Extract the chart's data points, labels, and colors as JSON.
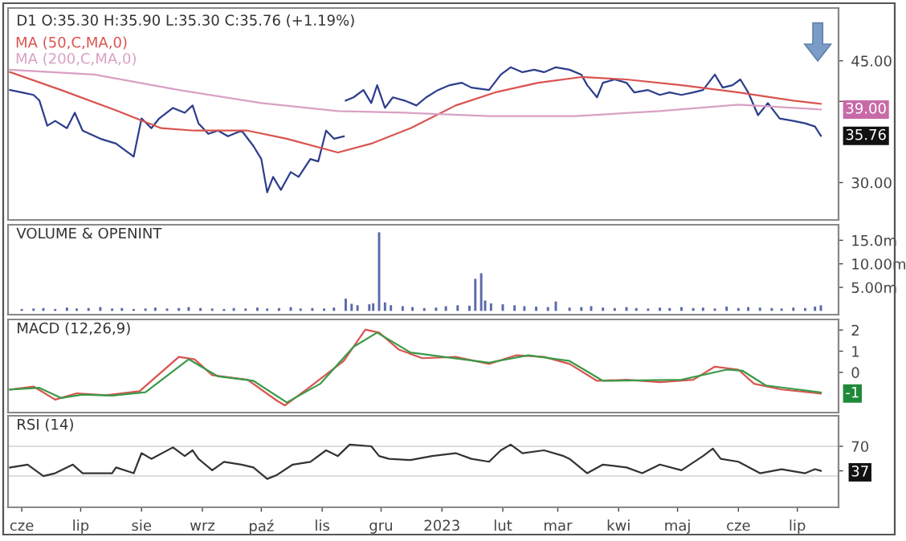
{
  "chart_data": [
    {
      "type": "line",
      "title": "D1 O:35.30 H:35.90 L:35.30 C:35.76 (+1.19%)",
      "legend": "top left",
      "tick_labels": "y",
      "xlim": [
        "2022-05-25",
        "2023-07-22"
      ],
      "ylim": [
        25.4,
        51.5
      ],
      "yticks": [
        {
          "value": 30,
          "label": "30.00"
        },
        {
          "value": 40,
          "label": null
        },
        {
          "value": 45,
          "label": "45.00"
        }
      ],
      "series": [
        {
          "color": "#2c3e8c",
          "x": [
            "2022-05-26",
            "2022-06-01",
            "2022-06-07",
            "2022-06-10",
            "2022-06-14",
            "2022-06-18",
            "2022-06-24",
            "2022-06-28",
            "2022-07-02",
            "2022-07-11",
            "2022-07-19",
            "2022-07-28",
            "2022-08-01",
            "2022-08-06",
            "2022-08-10",
            "2022-08-17",
            "2022-08-23",
            "2022-08-27",
            "2022-08-30",
            "2022-09-04",
            "2022-09-09",
            "2022-09-14",
            "2022-09-21",
            "2022-09-27",
            "2022-10-01",
            "2022-10-04",
            "2022-10-07",
            "2022-10-11",
            "2022-10-16",
            "2022-10-20",
            "2022-10-26",
            "2022-10-30",
            "2022-11-03",
            "2022-11-07",
            "2022-11-12",
            "2022-11-12T12:00",
            "2022-11-13",
            "2022-11-17",
            "2022-11-22",
            "2022-11-26",
            "2022-11-29",
            "2022-12-03",
            "2022-12-07",
            "2022-12-13",
            "2022-12-19",
            "2022-12-24",
            "2022-12-30",
            "2023-01-05",
            "2023-01-11",
            "2023-01-16",
            "2023-01-25",
            "2023-01-31",
            "2023-02-05",
            "2023-02-11",
            "2023-02-17",
            "2023-02-22",
            "2023-02-28",
            "2023-03-07",
            "2023-03-13",
            "2023-03-16",
            "2023-03-21",
            "2023-03-24",
            "2023-03-30",
            "2023-04-05",
            "2023-04-09",
            "2023-04-16",
            "2023-04-22",
            "2023-04-27",
            "2023-05-03",
            "2023-05-09",
            "2023-05-14",
            "2023-05-20",
            "2023-05-24",
            "2023-05-29",
            "2023-06-02",
            "2023-06-06",
            "2023-06-11",
            "2023-06-16",
            "2023-06-22",
            "2023-06-29",
            "2023-07-05",
            "2023-07-10",
            "2023-07-13"
          ],
          "values": [
            41.4,
            41.1,
            40.8,
            40.1,
            37.0,
            37.6,
            36.7,
            38.6,
            36.4,
            35.4,
            34.8,
            33.2,
            37.9,
            36.7,
            37.9,
            39.2,
            38.6,
            39.5,
            37.3,
            36.0,
            36.4,
            35.7,
            36.4,
            34.5,
            32.9,
            28.8,
            30.7,
            29.1,
            31.3,
            30.7,
            32.9,
            32.6,
            36.4,
            35.4,
            35.7,
            null,
            40.1,
            40.5,
            41.4,
            39.8,
            42.0,
            39.2,
            40.5,
            40.1,
            39.5,
            40.5,
            41.4,
            42.0,
            42.3,
            41.7,
            41.4,
            43.3,
            44.2,
            43.6,
            43.9,
            43.6,
            44.2,
            43.9,
            43.3,
            42.0,
            40.5,
            42.3,
            42.7,
            42.3,
            41.1,
            41.4,
            40.8,
            41.1,
            40.8,
            41.1,
            41.4,
            43.3,
            41.7,
            42.0,
            42.7,
            41.1,
            38.3,
            39.8,
            37.9,
            37.6,
            37.3,
            36.9,
            35.76
          ]
        },
        {
          "name": "MA (50,C,MA,0)",
          "color": "#d9534f",
          "x": [
            "2022-05-26",
            "2022-06-21",
            "2022-07-19",
            "2022-08-11",
            "2022-08-28",
            "2022-09-24",
            "2022-10-14",
            "2022-11-09",
            "2022-11-26",
            "2022-12-16",
            "2023-01-08",
            "2023-01-28",
            "2023-02-19",
            "2023-03-13",
            "2023-04-05",
            "2023-05-03",
            "2023-06-01",
            "2023-06-29",
            "2023-07-13"
          ],
          "values": [
            43.6,
            41.4,
            38.9,
            36.7,
            36.4,
            36.4,
            35.4,
            33.7,
            34.8,
            36.7,
            39.5,
            41.1,
            42.3,
            43.0,
            42.7,
            42.0,
            41.1,
            40.1,
            39.7
          ]
        },
        {
          "name": "MA (200,C,MA,0)",
          "color": "#d9a0c4",
          "x": [
            "2022-05-26",
            "2022-07-08",
            "2022-08-20",
            "2022-10-01",
            "2022-11-09",
            "2022-12-13",
            "2023-01-25",
            "2023-03-10",
            "2023-04-22",
            "2023-06-01",
            "2023-07-13"
          ],
          "values": [
            43.9,
            43.3,
            41.4,
            39.8,
            38.8,
            38.6,
            38.2,
            38.2,
            38.8,
            39.6,
            39.0
          ]
        }
      ],
      "annotations": [
        {
          "text": "39.00",
          "x": "2023-07-13",
          "y": 39.0
        },
        {
          "text": "35.76",
          "x": "2023-07-13",
          "y": 35.76
        }
      ]
    },
    {
      "type": "bar",
      "title": "VOLUME & OPENINT",
      "tick_labels": "y",
      "color": "#5a6aa8",
      "xlim": [
        "2022-05-25",
        "2023-07-22"
      ],
      "ylim": [
        -0.8,
        18.3
      ],
      "yticks": [
        {
          "value": 5,
          "label": "5.00m"
        },
        {
          "value": 10,
          "label": "10.00m"
        },
        {
          "value": 15,
          "label": "15.0m"
        }
      ],
      "x": [
        "2022-06-01",
        "2022-06-07",
        "2022-06-12",
        "2022-06-18",
        "2022-06-24",
        "2022-06-29",
        "2022-07-05",
        "2022-07-11",
        "2022-07-17",
        "2022-07-22",
        "2022-07-28",
        "2022-08-03",
        "2022-08-08",
        "2022-08-14",
        "2022-08-20",
        "2022-08-25",
        "2022-08-31",
        "2022-09-06",
        "2022-09-12",
        "2022-09-17",
        "2022-09-23",
        "2022-09-29",
        "2022-10-04",
        "2022-10-10",
        "2022-10-16",
        "2022-10-21",
        "2022-10-27",
        "2022-11-02",
        "2022-11-07",
        "2022-11-13",
        "2022-11-16",
        "2022-11-19",
        "2022-11-25",
        "2022-11-27",
        "2022-11-30",
        "2022-12-03",
        "2022-12-06",
        "2022-12-12",
        "2022-12-17",
        "2022-12-23",
        "2022-12-29",
        "2023-01-03",
        "2023-01-09",
        "2023-01-15",
        "2023-01-18",
        "2023-01-21",
        "2023-01-23",
        "2023-01-26",
        "2023-02-01",
        "2023-02-07",
        "2023-02-12",
        "2023-02-18",
        "2023-02-24",
        "2023-02-28",
        "2023-03-07",
        "2023-03-13",
        "2023-03-18",
        "2023-03-24",
        "2023-03-30",
        "2023-04-05",
        "2023-04-10",
        "2023-04-16",
        "2023-04-22",
        "2023-04-27",
        "2023-05-03",
        "2023-05-09",
        "2023-05-14",
        "2023-05-20",
        "2023-05-26",
        "2023-06-01",
        "2023-06-06",
        "2023-06-12",
        "2023-06-18",
        "2023-06-23",
        "2023-06-29",
        "2023-07-05",
        "2023-07-10",
        "2023-07-13"
      ],
      "values": [
        0.4,
        0.5,
        0.6,
        0.4,
        0.7,
        0.5,
        0.6,
        0.8,
        0.5,
        0.6,
        0.4,
        0.5,
        0.7,
        0.5,
        0.6,
        0.8,
        0.6,
        0.5,
        0.4,
        0.6,
        0.5,
        0.7,
        0.5,
        0.6,
        0.8,
        0.5,
        0.6,
        0.5,
        0.7,
        2.6,
        1.5,
        1.2,
        1.4,
        1.6,
        16.7,
        1.8,
        1.2,
        1.0,
        0.8,
        0.6,
        0.7,
        1.0,
        1.2,
        1.1,
        6.8,
        8.0,
        2.2,
        1.6,
        1.4,
        1.2,
        1.0,
        0.9,
        0.8,
        2.0,
        0.7,
        0.8,
        1.0,
        0.7,
        0.6,
        0.8,
        0.6,
        0.5,
        0.7,
        0.6,
        0.8,
        0.6,
        0.7,
        0.5,
        0.9,
        0.6,
        0.8,
        0.7,
        0.6,
        0.5,
        0.7,
        0.6,
        0.9,
        1.2
      ]
    },
    {
      "type": "line",
      "title": "MACD (12,26,9)",
      "tick_labels": "y",
      "xlim": [
        "2022-05-25",
        "2023-07-22"
      ],
      "ylim": [
        -1.9,
        2.5
      ],
      "yticks": [
        0,
        1,
        2
      ],
      "series": [
        {
          "color": "#d9534f",
          "x": [
            "2022-05-26",
            "2022-06-07",
            "2022-06-18",
            "2022-06-29",
            "2022-07-14",
            "2022-07-31",
            "2022-08-20",
            "2022-08-28",
            "2022-09-06",
            "2022-09-24",
            "2022-10-09",
            "2022-10-13",
            "2022-10-26",
            "2022-11-12",
            "2022-11-23",
            "2022-11-30",
            "2022-12-10",
            "2022-12-22",
            "2023-01-08",
            "2023-01-25",
            "2023-02-08",
            "2023-02-22",
            "2023-03-07",
            "2023-03-21",
            "2023-04-05",
            "2023-04-22",
            "2023-05-09",
            "2023-05-20",
            "2023-06-01",
            "2023-06-09",
            "2023-06-23",
            "2023-07-13"
          ],
          "values": [
            -0.81,
            -0.67,
            -1.29,
            -0.99,
            -1.08,
            -0.89,
            0.73,
            0.62,
            -0.13,
            -0.35,
            -1.34,
            -1.56,
            -0.67,
            0.54,
            2.02,
            1.88,
            1.08,
            0.67,
            0.73,
            0.4,
            0.81,
            0.73,
            0.4,
            -0.4,
            -0.35,
            -0.46,
            -0.35,
            0.27,
            0.13,
            -0.54,
            -0.81,
            -1.0
          ]
        },
        {
          "color": "#3a9a4a",
          "x": [
            "2022-05-26",
            "2022-06-10",
            "2022-06-21",
            "2022-07-02",
            "2022-07-17",
            "2022-08-03",
            "2022-08-25",
            "2022-09-09",
            "2022-09-27",
            "2022-10-14",
            "2022-10-31",
            "2022-11-17",
            "2022-11-29",
            "2022-12-16",
            "2023-01-02",
            "2023-01-25",
            "2023-02-14",
            "2023-03-07",
            "2023-03-24",
            "2023-05-03",
            "2023-05-26",
            "2023-06-03",
            "2023-06-15",
            "2023-07-13"
          ],
          "values": [
            -0.81,
            -0.73,
            -1.21,
            -1.05,
            -1.1,
            -0.94,
            0.62,
            -0.19,
            -0.4,
            -1.42,
            -0.54,
            1.21,
            1.88,
            0.94,
            0.73,
            0.46,
            0.81,
            0.54,
            -0.4,
            -0.35,
            0.13,
            0.08,
            -0.62,
            -0.95
          ]
        }
      ],
      "annotations": [
        {
          "text": "-1",
          "x": "2023-07-13",
          "y": -1.0
        }
      ]
    },
    {
      "type": "line",
      "title": "RSI (14)",
      "color": "#333333",
      "xlim": [
        "2022-05-25",
        "2023-07-22"
      ],
      "xticks": [
        {
          "value": "2022-06-01",
          "label": "cze"
        },
        {
          "value": "2022-07-01",
          "label": "lip"
        },
        {
          "value": "2022-08-01",
          "label": "sie"
        },
        {
          "value": "2022-09-01",
          "label": "wrz"
        },
        {
          "value": "2022-10-01",
          "label": "paź"
        },
        {
          "value": "2022-11-01",
          "label": "lis"
        },
        {
          "value": "2022-12-01",
          "label": "gru"
        },
        {
          "value": "2023-01-01",
          "label": "2023"
        },
        {
          "value": "2023-02-01",
          "label": "lut"
        },
        {
          "value": "2023-03-01",
          "label": "mar"
        },
        {
          "value": "2023-04-01",
          "label": "kwi"
        },
        {
          "value": "2023-05-01",
          "label": "maj"
        },
        {
          "value": "2023-06-01",
          "label": "cze"
        },
        {
          "value": "2023-07-01",
          "label": "lip"
        }
      ],
      "ylim": [
        -12,
        111
      ],
      "yticks": [
        37,
        70
      ],
      "ref_lines": [
        {
          "axis": "y",
          "value": 70,
          "color": "#dddddd"
        },
        {
          "axis": "y",
          "value": 30,
          "color": "#dddddd"
        }
      ],
      "x": [
        "2022-05-26",
        "2022-06-04",
        "2022-06-12",
        "2022-06-18",
        "2022-06-27",
        "2022-07-02",
        "2022-07-17",
        "2022-07-19",
        "2022-07-28",
        "2022-08-01",
        "2022-08-06",
        "2022-08-17",
        "2022-08-23",
        "2022-08-27",
        "2022-08-30",
        "2022-09-06",
        "2022-09-12",
        "2022-09-21",
        "2022-09-27",
        "2022-10-04",
        "2022-10-09",
        "2022-10-17",
        "2022-10-26",
        "2022-11-03",
        "2022-11-09",
        "2022-11-15",
        "2022-11-26",
        "2022-11-30",
        "2022-12-05",
        "2022-12-16",
        "2022-12-27",
        "2023-01-08",
        "2023-01-16",
        "2023-01-25",
        "2023-01-31",
        "2023-02-05",
        "2023-02-11",
        "2023-02-22",
        "2023-03-04",
        "2023-03-07",
        "2023-03-16",
        "2023-03-24",
        "2023-04-05",
        "2023-04-13",
        "2023-04-22",
        "2023-05-03",
        "2023-05-14",
        "2023-05-19",
        "2023-05-23",
        "2023-06-01",
        "2023-06-12",
        "2023-06-23",
        "2023-07-05",
        "2023-07-10",
        "2023-07-13"
      ],
      "values": [
        41.5,
        45.4,
        30.0,
        33.8,
        45.4,
        33.8,
        33.8,
        41.5,
        33.8,
        60.8,
        53.1,
        68.5,
        56.9,
        64.6,
        53.1,
        37.7,
        49.2,
        45.4,
        41.5,
        26.2,
        31.5,
        45.4,
        49.2,
        64.6,
        56.9,
        72.3,
        70.0,
        56.9,
        53.1,
        51.5,
        56.9,
        60.8,
        53.1,
        49.2,
        64.6,
        72.3,
        60.8,
        64.6,
        56.9,
        53.1,
        33.8,
        45.4,
        41.5,
        33.8,
        45.4,
        37.7,
        56.9,
        66.9,
        53.1,
        49.2,
        33.8,
        39.2,
        33.8,
        39.2,
        37
      ]
    }
  ]
}
